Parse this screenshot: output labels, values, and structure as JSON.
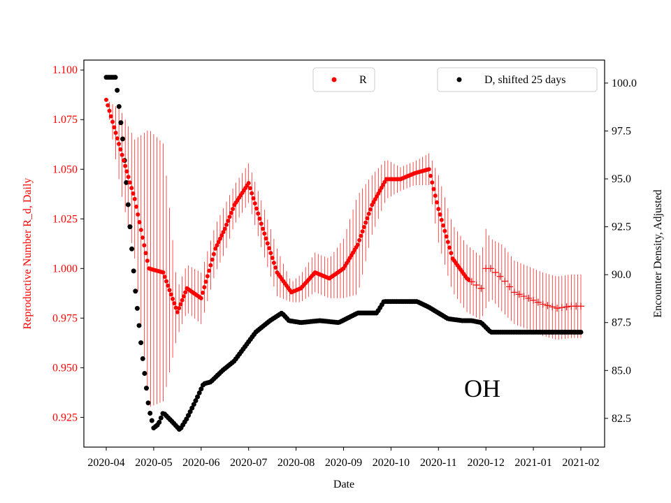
{
  "chart_data": {
    "type": "scatter",
    "title": "",
    "annotation": "OH",
    "colors": {
      "r_series": "#ff0000",
      "d_series": "#000000",
      "axis": "#000000"
    },
    "x_axis": {
      "label": "Date",
      "ticks": [
        "2020-04",
        "2020-05",
        "2020-06",
        "2020-07",
        "2020-08",
        "2020-09",
        "2020-10",
        "2020-11",
        "2020-12",
        "2021-01",
        "2021-02"
      ]
    },
    "y_left": {
      "label": "Reproductive Number R_d, Daily",
      "ylim": [
        0.91,
        1.105
      ],
      "ticks": [
        0.925,
        0.95,
        0.975,
        1.0,
        1.025,
        1.05,
        1.075,
        1.1
      ],
      "tick_labels": [
        "0.925",
        "0.950",
        "0.975",
        "1.000",
        "1.025",
        "1.050",
        "1.075",
        "1.100"
      ]
    },
    "y_right": {
      "label": "Encounter Density, Adjusted",
      "ylim": [
        81.0,
        101.2
      ],
      "ticks": [
        82.5,
        85.0,
        87.5,
        90.0,
        92.5,
        95.0,
        97.5,
        100.0
      ],
      "tick_labels": [
        "82.5",
        "85.0",
        "87.5",
        "90.0",
        "92.5",
        "95.0",
        "97.5",
        "100.0"
      ]
    },
    "legends": [
      {
        "label": "R",
        "position": "top-center",
        "series": "R"
      },
      {
        "label": "D, shifted 25 days",
        "position": "top-right",
        "series": "D"
      }
    ],
    "series": [
      {
        "name": "R",
        "axis": "left",
        "marker": "dot (solid) until ~2020-11-20, then + markers",
        "x_month_index": [
          0,
          0.3,
          0.6,
          0.9,
          1.2,
          1.5,
          1.7,
          2.0,
          2.3,
          2.5,
          2.7,
          3.0,
          3.3,
          3.6,
          3.9,
          4.1,
          4.4,
          4.7,
          5.0,
          5.3,
          5.6,
          5.9,
          6.2,
          6.5,
          6.8,
          7.0,
          7.3,
          7.6,
          7.9,
          8.0,
          8.1,
          8.35,
          8.6,
          8.9,
          9.2,
          9.5,
          9.8,
          10.0
        ],
        "values": [
          1.085,
          1.06,
          1.035,
          1.0,
          0.998,
          0.978,
          0.99,
          0.985,
          1.01,
          1.02,
          1.032,
          1.043,
          1.02,
          0.998,
          0.988,
          0.99,
          0.998,
          0.995,
          1.0,
          1.012,
          1.032,
          1.045,
          1.045,
          1.048,
          1.05,
          1.03,
          1.005,
          0.995,
          0.99,
          1.0,
          1.0,
          0.995,
          0.988,
          0.985,
          0.982,
          0.98,
          0.981,
          0.981
        ],
        "error": [
          0.0,
          0.02,
          0.03,
          0.07,
          0.065,
          0.012,
          0.012,
          0.013,
          0.012,
          0.012,
          0.01,
          0.01,
          0.012,
          0.012,
          0.005,
          0.007,
          0.01,
          0.01,
          0.015,
          0.025,
          0.015,
          0.01,
          0.006,
          0.006,
          0.008,
          0.017,
          0.017,
          0.017,
          0.016,
          0.02,
          0.015,
          0.017,
          0.016,
          0.016,
          0.016,
          0.016,
          0.016,
          0.016
        ],
        "plus_marker_from_x": 7.65
      },
      {
        "name": "D, shifted 25 days",
        "axis": "right",
        "marker": "dot",
        "x_month_index": [
          0,
          0.2,
          0.35,
          0.5,
          0.6,
          0.75,
          0.9,
          1.0,
          1.1,
          1.2,
          1.4,
          1.55,
          1.7,
          1.9,
          2.05,
          2.2,
          2.45,
          2.7,
          3.0,
          3.15,
          3.45,
          3.7,
          3.85,
          4.1,
          4.5,
          4.9,
          5.3,
          5.7,
          5.85,
          6.05,
          6.25,
          6.55,
          6.8,
          7.0,
          7.2,
          7.5,
          7.7,
          7.9,
          8.1,
          8.35,
          9.0,
          9.5,
          10.0
        ],
        "values": [
          100.3,
          100.3,
          97.0,
          92.5,
          89.5,
          86.0,
          83.0,
          82.0,
          82.2,
          82.8,
          82.3,
          81.9,
          82.5,
          83.5,
          84.3,
          84.4,
          85.0,
          85.5,
          86.5,
          87.0,
          87.6,
          88.0,
          87.6,
          87.5,
          87.6,
          87.5,
          88.0,
          88.0,
          88.6,
          88.6,
          88.6,
          88.6,
          88.3,
          88.0,
          87.7,
          87.6,
          87.6,
          87.5,
          87.0,
          87.0,
          87.0,
          87.0,
          87.0
        ]
      }
    ]
  }
}
